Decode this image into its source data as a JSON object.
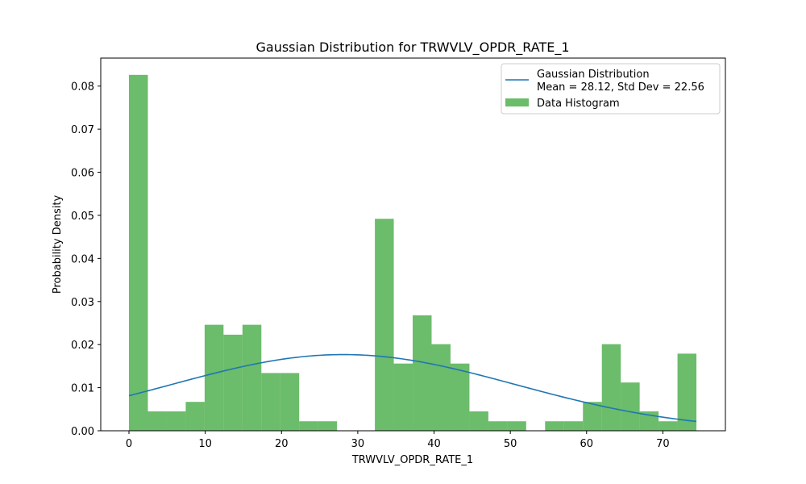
{
  "chart_data": {
    "type": "bar",
    "title": "Gaussian Distribution for TRWVLV_OPDR_RATE_1",
    "xlabel": "TRWVLV_OPDR_RATE_1",
    "ylabel": "Probability Density",
    "xlim": [
      -3.7,
      78.2
    ],
    "ylim": [
      0,
      0.0865
    ],
    "xticks": [
      0,
      10,
      20,
      30,
      40,
      50,
      60,
      70
    ],
    "yticks": [
      0.0,
      0.01,
      0.02,
      0.03,
      0.04,
      0.05,
      0.06,
      0.07,
      0.08
    ],
    "ytick_labels": [
      "0.00",
      "0.01",
      "0.02",
      "0.03",
      "0.04",
      "0.05",
      "0.06",
      "0.07",
      "0.08"
    ],
    "grid": false,
    "legend_position": "top-right",
    "legend": {
      "line_label_1": "Gaussian Distribution",
      "line_label_2": "Mean = 28.12, Std Dev = 22.56",
      "hist_label": "Data Histogram"
    },
    "histogram": {
      "name": "Data Histogram",
      "bin_start": 0,
      "bin_width": 2.48,
      "values": [
        0.0826,
        0.0045,
        0.0045,
        0.0067,
        0.0246,
        0.0223,
        0.0246,
        0.0134,
        0.0134,
        0.0022,
        0.0022,
        0.0,
        0.0,
        0.0492,
        0.0156,
        0.0268,
        0.0201,
        0.0156,
        0.0045,
        0.0022,
        0.0022,
        0.0,
        0.0022,
        0.0022,
        0.0067,
        0.0201,
        0.0112,
        0.0045,
        0.0022,
        0.0179
      ],
      "color": "#2ca02c"
    },
    "gaussian": {
      "name": "Gaussian Distribution",
      "mean": 28.12,
      "std": 22.56,
      "x_range": [
        0,
        74.4
      ],
      "color": "#1f77b4"
    }
  }
}
